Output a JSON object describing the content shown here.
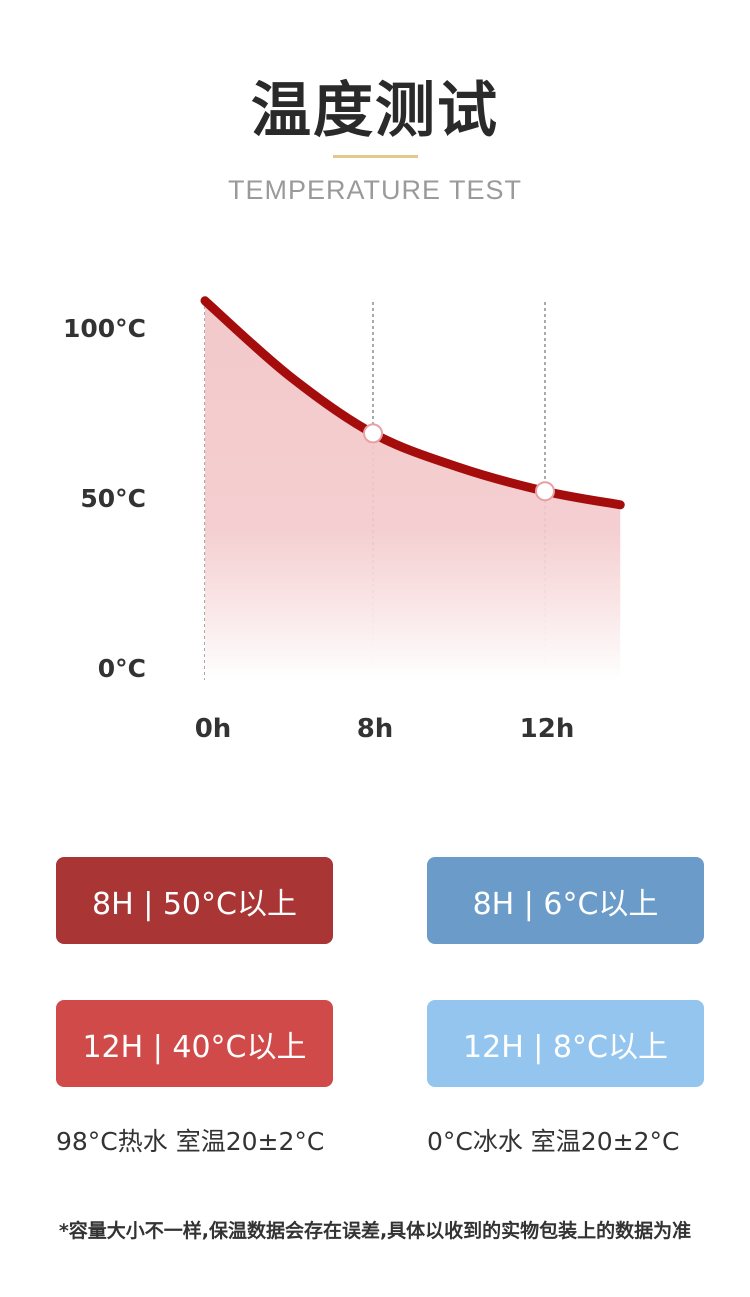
{
  "header": {
    "title": "温度测试",
    "subtitle": "TEMPERATURE TEST"
  },
  "chart_data": {
    "type": "area",
    "x": [
      0,
      4,
      8,
      10,
      12,
      13.75
    ],
    "y": [
      108,
      86,
      69,
      59,
      52,
      48
    ],
    "markers_at": [
      8,
      12
    ],
    "xticks": [
      0,
      8,
      12
    ],
    "xtick_labels": [
      "0h",
      "8h",
      "12h"
    ],
    "yticks": [
      0,
      50,
      100
    ],
    "ytick_labels": [
      "0°C",
      "50°C",
      "100°C"
    ],
    "ylim": [
      0,
      108
    ],
    "grid": "vertical dashed lines at x ticks",
    "colors": {
      "line": "#a50c0c",
      "fill": "#f3c9cb"
    }
  },
  "badges": [
    {
      "label": "8H | 50°C以上",
      "color": "#a93535"
    },
    {
      "label": "8H | 6°C以上",
      "color": "#6a9bc9"
    },
    {
      "label": "12H  | 40°C以上",
      "color": "#d14a4a"
    },
    {
      "label": "12H  | 8°C以上",
      "color": "#93c5ef"
    }
  ],
  "captions": {
    "hot": "98°C热水 室温20±2°C",
    "cold": "0°C冰水 室温20±2°C"
  },
  "footnote": "*容量大小不一样,保温数据会存在误差,具体以收到的实物包装上的数据为准"
}
